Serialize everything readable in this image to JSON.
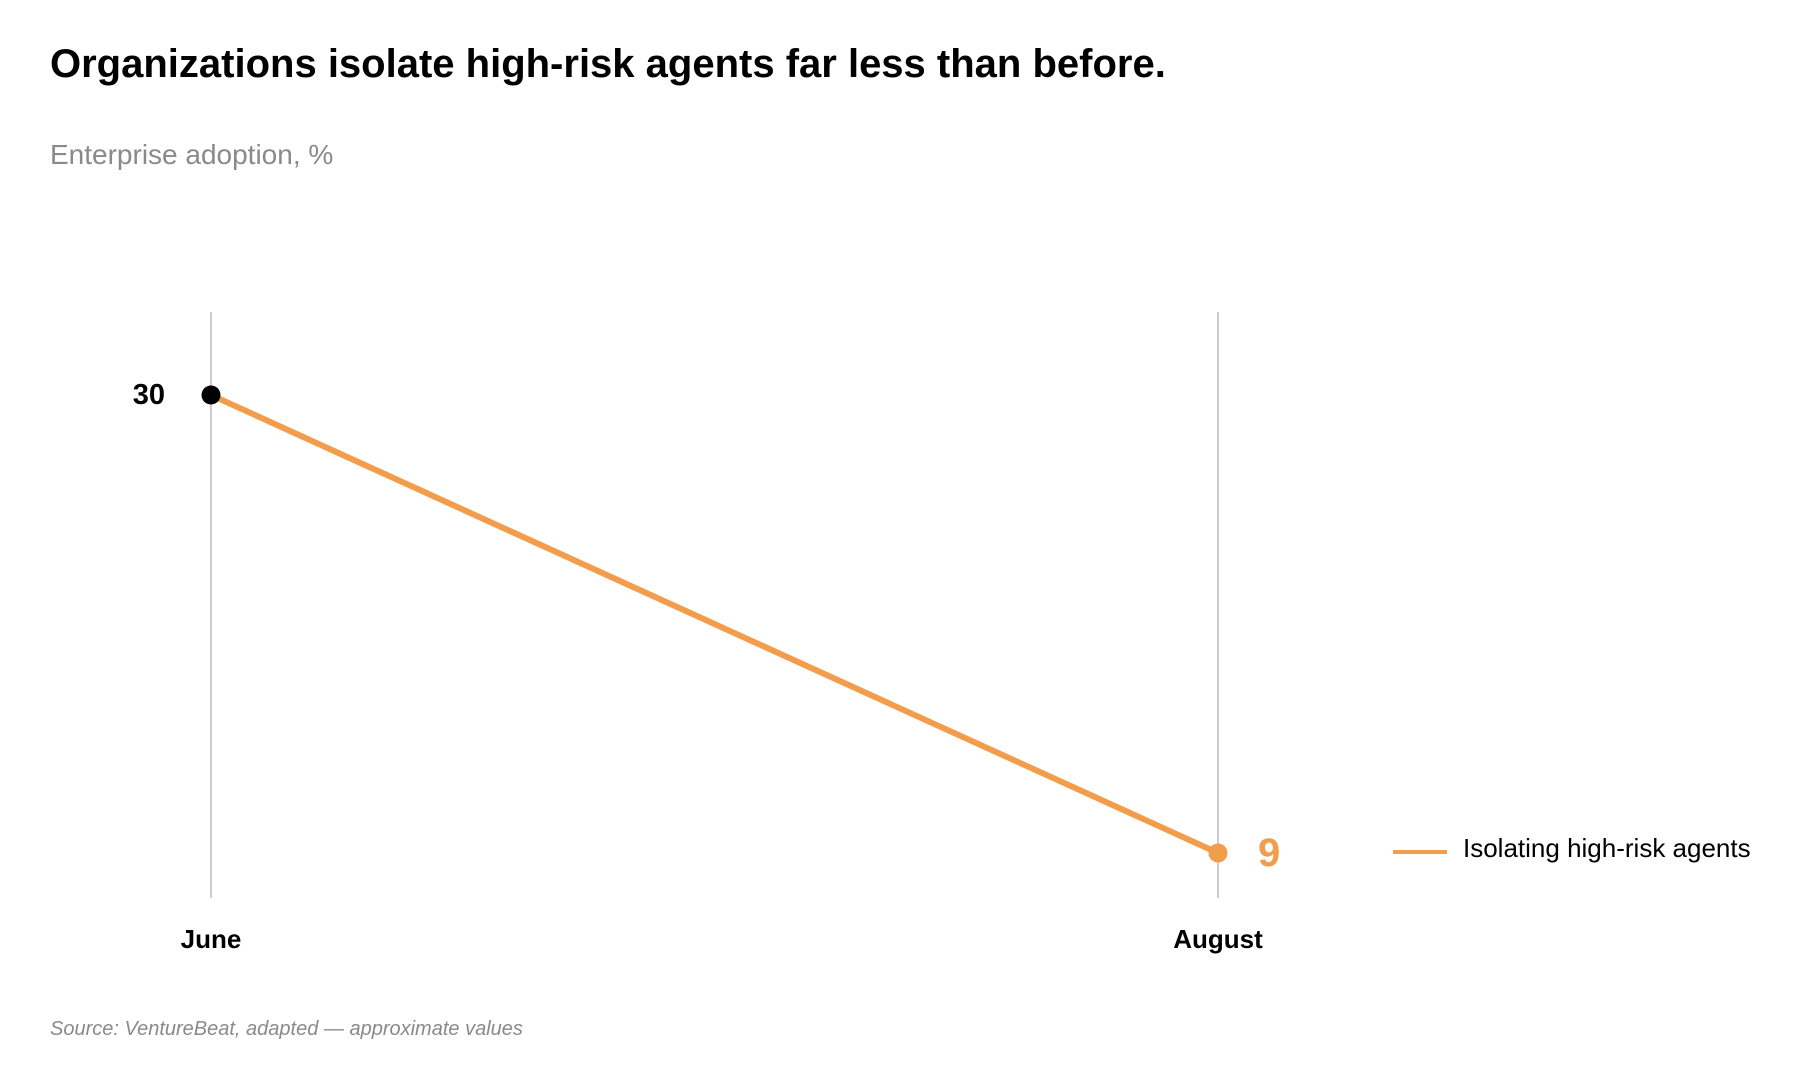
{
  "header": {
    "title": "Organizations isolate high-risk agents far less than before.",
    "subtitle": "Enterprise adoption, %"
  },
  "footer": {
    "source": "Source: VentureBeat, adapted — approximate values"
  },
  "colors": {
    "series": "#f29d4b",
    "start_marker": "#000000",
    "gridline": "#cccccc",
    "text": "#000000",
    "muted": "#8a8a8a"
  },
  "chart_data": {
    "type": "line",
    "title": "Organizations isolate high-risk agents far less than before.",
    "subtitle": "Enterprise adoption, %",
    "categories": [
      "June",
      "August"
    ],
    "series": [
      {
        "name": "Isolating high-risk agents",
        "values": [
          30,
          9
        ]
      }
    ],
    "value_labels": [
      "30",
      "9"
    ],
    "ylim": [
      9,
      30
    ],
    "grid": "vertical lines at each category",
    "legend": "right"
  }
}
